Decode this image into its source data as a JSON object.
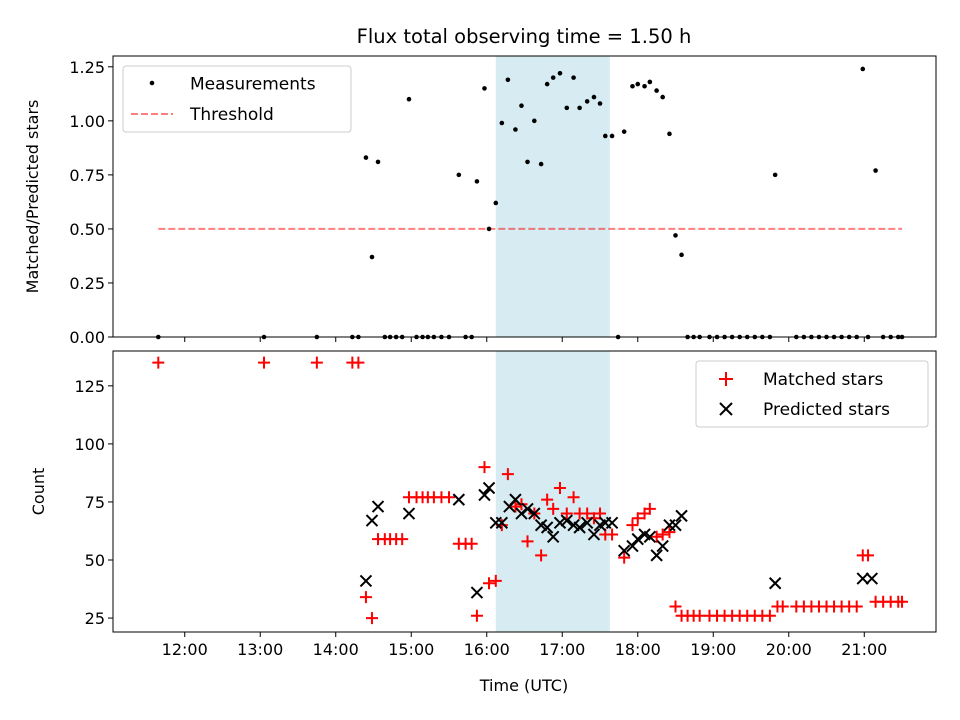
{
  "chart_data": {
    "type": "scatter",
    "title": "Flux total observing time = 1.50 h",
    "xlabel": "Time (UTC)",
    "x_unit": "hours UTC",
    "xlim": [
      11.05,
      21.95
    ],
    "x_ticks": [
      {
        "value": 12,
        "label": "12:00"
      },
      {
        "value": 13,
        "label": "13:00"
      },
      {
        "value": 14,
        "label": "14:00"
      },
      {
        "value": 15,
        "label": "15:00"
      },
      {
        "value": 16,
        "label": "16:00"
      },
      {
        "value": 17,
        "label": "17:00"
      },
      {
        "value": 18,
        "label": "18:00"
      },
      {
        "value": 19,
        "label": "19:00"
      },
      {
        "value": 20,
        "label": "20:00"
      },
      {
        "value": 21,
        "label": "21:00"
      }
    ],
    "highlight_span": {
      "start": 16.12,
      "end": 17.63,
      "color": "#add8e6"
    },
    "panels": [
      {
        "ylabel": "Matched/Predicted stars",
        "ylim": [
          0,
          1.3
        ],
        "y_ticks": [
          {
            "value": 0,
            "label": "0.00"
          },
          {
            "value": 0.25,
            "label": "0.25"
          },
          {
            "value": 0.5,
            "label": "0.50"
          },
          {
            "value": 0.75,
            "label": "0.75"
          },
          {
            "value": 1.0,
            "label": "1.00"
          },
          {
            "value": 1.25,
            "label": "1.25"
          }
        ],
        "legend": {
          "position": "upper left",
          "entries": [
            "Measurements",
            "Threshold"
          ]
        },
        "threshold": {
          "name": "Threshold",
          "value": 0.5,
          "x_range": [
            11.65,
            21.5
          ],
          "color": "#ff0000",
          "style": "dashed"
        },
        "series": [
          {
            "name": "Measurements",
            "marker": "dot",
            "color": "#000000",
            "points": [
              [
                11.65,
                0
              ],
              [
                13.05,
                0
              ],
              [
                13.75,
                0
              ],
              [
                14.22,
                0
              ],
              [
                14.3,
                0
              ],
              [
                14.4,
                0.83
              ],
              [
                14.48,
                0.37
              ],
              [
                14.56,
                0.81
              ],
              [
                14.65,
                0
              ],
              [
                14.72,
                0
              ],
              [
                14.8,
                0
              ],
              [
                14.88,
                0
              ],
              [
                14.97,
                1.1
              ],
              [
                15.07,
                0
              ],
              [
                15.15,
                0
              ],
              [
                15.22,
                0
              ],
              [
                15.3,
                0
              ],
              [
                15.4,
                0
              ],
              [
                15.5,
                0
              ],
              [
                15.63,
                0.75
              ],
              [
                15.72,
                0
              ],
              [
                15.8,
                0
              ],
              [
                15.87,
                0.72
              ],
              [
                15.97,
                1.15
              ],
              [
                16.03,
                0.5
              ],
              [
                16.12,
                0.62
              ],
              [
                16.2,
                0.99
              ],
              [
                16.28,
                1.19
              ],
              [
                16.38,
                0.96
              ],
              [
                16.46,
                1.07
              ],
              [
                16.54,
                0.81
              ],
              [
                16.63,
                1.0
              ],
              [
                16.72,
                0.8
              ],
              [
                16.8,
                1.17
              ],
              [
                16.88,
                1.2
              ],
              [
                16.97,
                1.22
              ],
              [
                17.06,
                1.06
              ],
              [
                17.15,
                1.2
              ],
              [
                17.23,
                1.06
              ],
              [
                17.33,
                1.09
              ],
              [
                17.42,
                1.11
              ],
              [
                17.5,
                1.08
              ],
              [
                17.57,
                0.93
              ],
              [
                17.66,
                0.93
              ],
              [
                17.74,
                0
              ],
              [
                17.82,
                0.95
              ],
              [
                17.93,
                1.16
              ],
              [
                18.0,
                1.17
              ],
              [
                18.09,
                1.16
              ],
              [
                18.16,
                1.18
              ],
              [
                18.25,
                1.14
              ],
              [
                18.33,
                1.11
              ],
              [
                18.42,
                0.94
              ],
              [
                18.5,
                0.47
              ],
              [
                18.58,
                0.38
              ],
              [
                18.66,
                0
              ],
              [
                18.74,
                0
              ],
              [
                18.82,
                0
              ],
              [
                18.95,
                0
              ],
              [
                19.05,
                0
              ],
              [
                19.15,
                0
              ],
              [
                19.25,
                0
              ],
              [
                19.35,
                0
              ],
              [
                19.45,
                0
              ],
              [
                19.55,
                0
              ],
              [
                19.65,
                0
              ],
              [
                19.75,
                0
              ],
              [
                19.82,
                0.75
              ],
              [
                20.1,
                0
              ],
              [
                20.2,
                0
              ],
              [
                20.3,
                0
              ],
              [
                20.4,
                0
              ],
              [
                20.5,
                0
              ],
              [
                20.6,
                0
              ],
              [
                20.7,
                0
              ],
              [
                20.8,
                0
              ],
              [
                20.9,
                0
              ],
              [
                20.98,
                1.24
              ],
              [
                21.05,
                0
              ],
              [
                21.15,
                0.77
              ],
              [
                21.25,
                0
              ],
              [
                21.35,
                0
              ],
              [
                21.45,
                0
              ],
              [
                21.5,
                0
              ]
            ]
          }
        ]
      },
      {
        "ylabel": "Count",
        "ylim": [
          19,
          140
        ],
        "y_ticks": [
          {
            "value": 25,
            "label": "25"
          },
          {
            "value": 50,
            "label": "50"
          },
          {
            "value": 75,
            "label": "75"
          },
          {
            "value": 100,
            "label": "100"
          },
          {
            "value": 125,
            "label": "125"
          }
        ],
        "legend": {
          "position": "upper right",
          "entries": [
            "Matched stars",
            "Predicted stars"
          ]
        },
        "series": [
          {
            "name": "Matched stars",
            "marker": "plus",
            "color": "#ff0000",
            "points": [
              [
                11.65,
                135
              ],
              [
                13.05,
                135
              ],
              [
                13.75,
                135
              ],
              [
                14.22,
                135
              ],
              [
                14.3,
                135
              ],
              [
                14.4,
                34
              ],
              [
                14.48,
                25
              ],
              [
                14.56,
                59
              ],
              [
                14.65,
                59
              ],
              [
                14.72,
                59
              ],
              [
                14.8,
                59
              ],
              [
                14.88,
                59
              ],
              [
                14.97,
                77
              ],
              [
                15.07,
                77
              ],
              [
                15.15,
                77
              ],
              [
                15.22,
                77
              ],
              [
                15.3,
                77
              ],
              [
                15.4,
                77
              ],
              [
                15.5,
                77
              ],
              [
                15.63,
                57
              ],
              [
                15.72,
                57
              ],
              [
                15.8,
                57
              ],
              [
                15.87,
                26
              ],
              [
                15.97,
                90
              ],
              [
                16.03,
                40
              ],
              [
                16.12,
                41
              ],
              [
                16.2,
                65
              ],
              [
                16.28,
                87
              ],
              [
                16.38,
                73
              ],
              [
                16.46,
                74
              ],
              [
                16.54,
                58
              ],
              [
                16.63,
                70
              ],
              [
                16.72,
                52
              ],
              [
                16.8,
                76
              ],
              [
                16.88,
                72
              ],
              [
                16.97,
                81
              ],
              [
                17.06,
                70
              ],
              [
                17.15,
                77
              ],
              [
                17.23,
                70
              ],
              [
                17.33,
                70
              ],
              [
                17.42,
                68
              ],
              [
                17.5,
                70
              ],
              [
                17.57,
                61
              ],
              [
                17.66,
                61
              ],
              [
                17.82,
                51
              ],
              [
                17.93,
                65
              ],
              [
                18.0,
                68
              ],
              [
                18.09,
                70
              ],
              [
                18.16,
                72
              ],
              [
                18.25,
                60
              ],
              [
                18.33,
                61
              ],
              [
                18.42,
                62
              ],
              [
                18.5,
                30
              ],
              [
                18.58,
                26
              ],
              [
                18.66,
                26
              ],
              [
                18.74,
                26
              ],
              [
                18.82,
                26
              ],
              [
                18.95,
                26
              ],
              [
                19.05,
                26
              ],
              [
                19.15,
                26
              ],
              [
                19.25,
                26
              ],
              [
                19.35,
                26
              ],
              [
                19.45,
                26
              ],
              [
                19.55,
                26
              ],
              [
                19.65,
                26
              ],
              [
                19.75,
                26
              ],
              [
                19.85,
                30
              ],
              [
                19.92,
                30
              ],
              [
                20.1,
                30
              ],
              [
                20.2,
                30
              ],
              [
                20.3,
                30
              ],
              [
                20.4,
                30
              ],
              [
                20.5,
                30
              ],
              [
                20.6,
                30
              ],
              [
                20.7,
                30
              ],
              [
                20.8,
                30
              ],
              [
                20.9,
                30
              ],
              [
                20.98,
                52
              ],
              [
                21.05,
                52
              ],
              [
                21.15,
                32
              ],
              [
                21.25,
                32
              ],
              [
                21.35,
                32
              ],
              [
                21.45,
                32
              ],
              [
                21.5,
                32
              ]
            ]
          },
          {
            "name": "Predicted stars",
            "marker": "x",
            "color": "#000000",
            "points": [
              [
                14.4,
                41
              ],
              [
                14.48,
                67
              ],
              [
                14.56,
                73
              ],
              [
                14.97,
                70
              ],
              [
                15.63,
                76
              ],
              [
                15.87,
                36
              ],
              [
                15.97,
                78
              ],
              [
                16.03,
                81
              ],
              [
                16.12,
                66
              ],
              [
                16.2,
                66
              ],
              [
                16.3,
                73
              ],
              [
                16.38,
                76
              ],
              [
                16.46,
                70
              ],
              [
                16.54,
                72
              ],
              [
                16.63,
                70
              ],
              [
                16.72,
                65
              ],
              [
                16.8,
                64
              ],
              [
                16.88,
                60
              ],
              [
                16.97,
                66
              ],
              [
                17.06,
                67
              ],
              [
                17.15,
                65
              ],
              [
                17.23,
                64
              ],
              [
                17.33,
                66
              ],
              [
                17.42,
                61
              ],
              [
                17.5,
                65
              ],
              [
                17.57,
                66
              ],
              [
                17.66,
                66
              ],
              [
                17.82,
                54
              ],
              [
                17.93,
                56
              ],
              [
                18.0,
                59
              ],
              [
                18.09,
                61
              ],
              [
                18.16,
                60
              ],
              [
                18.25,
                52
              ],
              [
                18.33,
                56
              ],
              [
                18.42,
                65
              ],
              [
                18.5,
                65
              ],
              [
                18.58,
                69
              ],
              [
                19.82,
                40
              ],
              [
                20.98,
                42
              ],
              [
                21.1,
                42
              ]
            ]
          }
        ]
      }
    ]
  }
}
